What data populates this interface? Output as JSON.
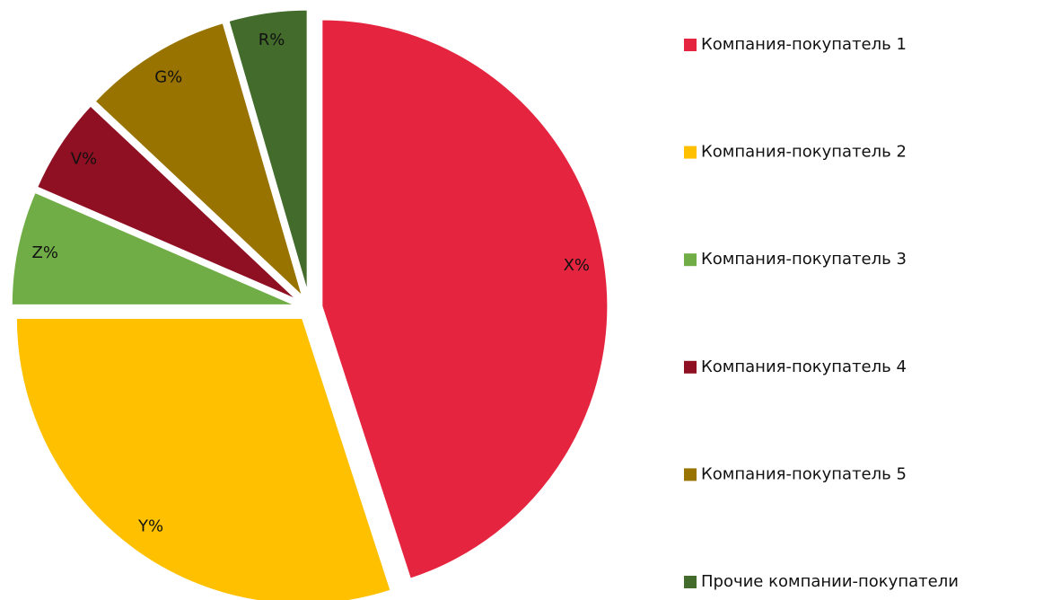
{
  "chart_data": {
    "type": "pie",
    "categories": [
      "Компания-покупатель 1",
      "Компания-покупатель 2",
      "Компания-покупатель 3",
      "Компания-покупатель 4",
      "Компания-покупатель 5",
      "Прочие компании-покупатели"
    ],
    "values": [
      45,
      30,
      6.5,
      5.5,
      8.5,
      4.5
    ],
    "value_labels": [
      "X%",
      "Y%",
      "Z%",
      "V%",
      "G%",
      "R%"
    ],
    "colors": [
      "#e5243f",
      "#ffc000",
      "#70ad47",
      "#8e1022",
      "#997300",
      "#436b2c"
    ],
    "legend": "right"
  }
}
